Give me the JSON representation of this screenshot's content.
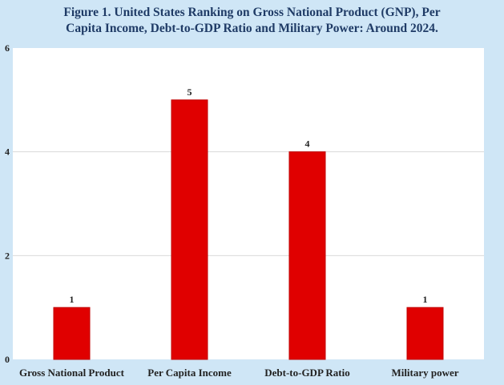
{
  "chart_data": {
    "type": "bar",
    "title_line1": "Figure 1. United States Ranking on Gross National Product (GNP), Per",
    "title_line2": "Capita Income, Debt-to-GDP Ratio and Military Power: Around 2024.",
    "categories": [
      "Gross National Product",
      "Per Capita Income",
      "Debt-to-GDP Ratio",
      "Military power"
    ],
    "values": [
      1,
      5,
      4,
      1
    ],
    "data_labels": [
      "1",
      "5",
      "4",
      "1"
    ],
    "ylim": [
      0,
      6
    ],
    "yticks": [
      0,
      2,
      4,
      6
    ],
    "ytick_labels": [
      "0",
      "2",
      "4",
      "6"
    ],
    "xlabel": "",
    "ylabel": "",
    "grid": true,
    "legend": "none",
    "colors": {
      "bar": "#e00000",
      "bar_stroke": "#c00000",
      "background": "#cfe6f6",
      "plot_area": "#ffffff",
      "grid": "#d9d9d9",
      "title": "#1f3b66"
    }
  }
}
